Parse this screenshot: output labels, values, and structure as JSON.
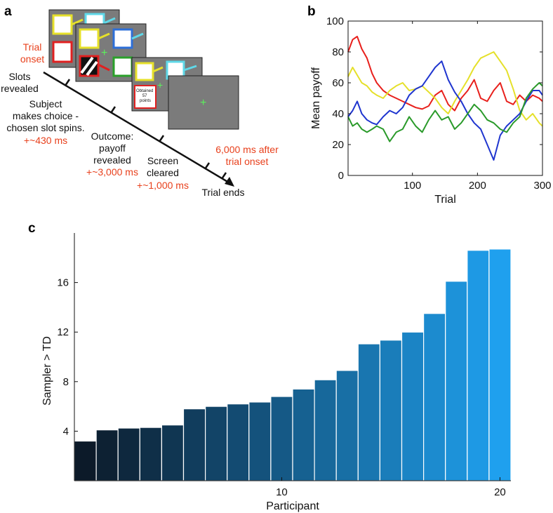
{
  "panel_letters": {
    "a": "a",
    "b": "b",
    "c": "c"
  },
  "panel_a": {
    "trial_onset": "Trial\nonset",
    "events": [
      {
        "text": "Slots\nrevealed",
        "timing": ""
      },
      {
        "text": "Subject\nmakes choice -\nchosen slot spins.",
        "timing": "+~430 ms"
      },
      {
        "text": "Outcome:\npayoff\nrevealed",
        "timing": "+~3,000 ms"
      },
      {
        "text": "Screen\ncleared",
        "timing": "+~1,000 ms"
      },
      {
        "text": "Trial ends",
        "timing": ""
      }
    ],
    "end_note": "6,000 ms after\ntrial onset",
    "obtained_label": "Obtained\n57\npoints",
    "colors": {
      "red": "#e8401c",
      "screen": "#7b7b7b"
    }
  },
  "chart_data": [
    {
      "type": "line",
      "panel": "b",
      "xlabel": "Trial",
      "ylabel": "Mean payoff",
      "xlim": [
        1,
        300
      ],
      "ylim": [
        0,
        100
      ],
      "xticks": [
        100,
        200,
        300
      ],
      "yticks": [
        0,
        20,
        40,
        60,
        80,
        100
      ],
      "series": [
        {
          "name": "red",
          "color": "#e8201c",
          "x": [
            1,
            8,
            15,
            22,
            30,
            38,
            45,
            55,
            65,
            75,
            85,
            95,
            105,
            115,
            125,
            135,
            145,
            155,
            165,
            175,
            185,
            195,
            205,
            215,
            225,
            235,
            245,
            255,
            265,
            275,
            285,
            295,
            300
          ],
          "y": [
            80,
            88,
            90,
            82,
            76,
            66,
            60,
            55,
            52,
            50,
            48,
            46,
            44,
            43,
            45,
            52,
            55,
            46,
            42,
            50,
            55,
            62,
            50,
            48,
            55,
            60,
            48,
            46,
            52,
            48,
            52,
            50,
            48
          ]
        },
        {
          "name": "yellow",
          "color": "#e5e02a",
          "x": [
            1,
            8,
            15,
            22,
            30,
            38,
            45,
            55,
            65,
            75,
            85,
            95,
            105,
            115,
            125,
            135,
            145,
            155,
            165,
            175,
            185,
            195,
            205,
            215,
            225,
            235,
            245,
            255,
            265,
            275,
            285,
            295,
            300
          ],
          "y": [
            64,
            70,
            65,
            60,
            58,
            54,
            52,
            50,
            55,
            58,
            60,
            55,
            56,
            58,
            54,
            50,
            44,
            40,
            48,
            55,
            62,
            70,
            76,
            78,
            80,
            74,
            68,
            56,
            42,
            36,
            40,
            34,
            32
          ]
        },
        {
          "name": "blue",
          "color": "#1f35cf",
          "x": [
            1,
            8,
            15,
            22,
            30,
            38,
            45,
            55,
            65,
            75,
            85,
            95,
            105,
            115,
            125,
            135,
            145,
            155,
            165,
            175,
            185,
            195,
            205,
            215,
            225,
            235,
            245,
            255,
            265,
            275,
            285,
            295,
            300
          ],
          "y": [
            38,
            42,
            48,
            40,
            36,
            34,
            33,
            38,
            42,
            40,
            44,
            52,
            56,
            58,
            64,
            70,
            74,
            62,
            54,
            48,
            40,
            34,
            30,
            20,
            10,
            26,
            32,
            36,
            40,
            48,
            55,
            55,
            52
          ]
        },
        {
          "name": "green",
          "color": "#2a9a2a",
          "x": [
            1,
            8,
            15,
            22,
            30,
            38,
            45,
            55,
            65,
            75,
            85,
            95,
            105,
            115,
            125,
            135,
            145,
            155,
            165,
            175,
            185,
            195,
            205,
            215,
            225,
            235,
            245,
            255,
            265,
            275,
            285,
            295,
            300
          ],
          "y": [
            38,
            32,
            34,
            30,
            28,
            30,
            32,
            30,
            22,
            28,
            30,
            38,
            32,
            28,
            36,
            42,
            36,
            38,
            30,
            34,
            40,
            46,
            42,
            36,
            34,
            30,
            28,
            34,
            38,
            50,
            56,
            60,
            58
          ]
        }
      ]
    },
    {
      "type": "bar",
      "panel": "c",
      "xlabel": "Participant",
      "ylabel": "Sampler > TD",
      "xlim": [
        0.5,
        20.5
      ],
      "ylim": [
        0,
        20
      ],
      "xticks": [
        10,
        20
      ],
      "yticks": [
        4,
        8,
        12,
        16
      ],
      "categories": [
        1,
        2,
        3,
        4,
        5,
        6,
        7,
        8,
        9,
        10,
        11,
        12,
        13,
        14,
        15,
        16,
        17,
        18,
        19,
        20
      ],
      "values": [
        3.2,
        4.1,
        4.25,
        4.3,
        4.5,
        5.8,
        6.0,
        6.2,
        6.35,
        6.8,
        7.4,
        8.15,
        8.9,
        11.05,
        11.35,
        12.0,
        13.5,
        16.1,
        18.6,
        18.7
      ],
      "color_start": "#0c1a29",
      "color_end": "#1fa0ee"
    }
  ]
}
